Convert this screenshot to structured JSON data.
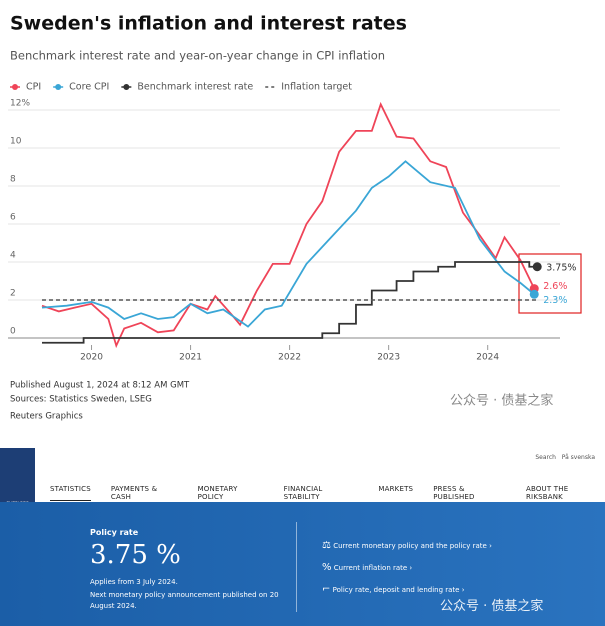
{
  "chart_data": {
    "type": "line",
    "title": "Sweden's inflation and interest rates",
    "subtitle": "Benchmark interest rate and year-on-year change in CPI inflation",
    "series": [
      {
        "name": "CPI",
        "color": "#ef4458",
        "x": [
          2019.5,
          2019.67,
          2019.83,
          2020.0,
          2020.17,
          2020.25,
          2020.33,
          2020.5,
          2020.67,
          2020.83,
          2021.0,
          2021.17,
          2021.25,
          2021.42,
          2021.5,
          2021.67,
          2021.83,
          2022.0,
          2022.17,
          2022.33,
          2022.5,
          2022.67,
          2022.83,
          2022.92,
          2023.08,
          2023.25,
          2023.42,
          2023.58,
          2023.75,
          2023.92,
          2024.08,
          2024.17,
          2024.33,
          2024.47
        ],
        "values": [
          1.7,
          1.4,
          1.6,
          1.8,
          1.0,
          -0.4,
          0.5,
          0.8,
          0.3,
          0.4,
          1.8,
          1.5,
          2.2,
          1.2,
          0.7,
          2.5,
          3.9,
          3.9,
          6.0,
          7.2,
          9.8,
          10.9,
          10.9,
          12.3,
          10.6,
          10.5,
          9.3,
          9.0,
          6.6,
          5.4,
          4.2,
          5.3,
          4.1,
          2.6
        ],
        "end_label": "2.6%"
      },
      {
        "name": "Core CPI",
        "color": "#3aa6d6",
        "x": [
          2019.5,
          2019.75,
          2020.0,
          2020.17,
          2020.33,
          2020.5,
          2020.67,
          2020.83,
          2021.0,
          2021.17,
          2021.33,
          2021.58,
          2021.75,
          2021.92,
          2022.17,
          2022.42,
          2022.67,
          2022.83,
          2023.0,
          2023.17,
          2023.42,
          2023.67,
          2023.92,
          2024.17,
          2024.33,
          2024.47
        ],
        "values": [
          1.6,
          1.7,
          1.9,
          1.6,
          1.0,
          1.3,
          1.0,
          1.1,
          1.8,
          1.3,
          1.5,
          0.6,
          1.5,
          1.7,
          3.9,
          5.3,
          6.7,
          7.9,
          8.5,
          9.3,
          8.2,
          7.9,
          5.2,
          3.5,
          2.9,
          2.3
        ],
        "end_label": "2.3%"
      },
      {
        "name": "Benchmark interest rate",
        "color": "#333333",
        "step": true,
        "x": [
          2019.5,
          2019.92,
          2022.33,
          2022.5,
          2022.67,
          2022.83,
          2023.08,
          2023.25,
          2023.5,
          2023.67,
          2024.42,
          2024.5
        ],
        "values": [
          -0.25,
          0,
          0.25,
          0.75,
          1.75,
          2.5,
          3.0,
          3.5,
          3.75,
          4.0,
          3.75,
          3.75
        ],
        "end_label": "3.75%"
      },
      {
        "name": "Inflation target",
        "color": "#555555",
        "dash": true,
        "x": [
          2019.5,
          2024.5
        ],
        "values": [
          2,
          2
        ]
      }
    ],
    "xlim": [
      2019.5,
      2024.73
    ],
    "xticks": [
      2020,
      2021,
      2022,
      2023,
      2024
    ],
    "ylim": [
      -0.8,
      12.5
    ],
    "yticks": [
      0,
      2,
      4,
      6,
      8,
      10,
      {
        "value": 12,
        "label": "12%"
      }
    ],
    "grid": true,
    "published": "Published August 1, 2024 at 8:12 AM GMT",
    "sources": "Sources: Statistics Sweden, LSEG",
    "credit": "Reuters Graphics"
  },
  "watermark": "公众号 · 债基之家",
  "website": {
    "logo": "SVERIGES RIKSBANK",
    "search": "Search",
    "language": "På svenska",
    "nav": [
      "STATISTICS",
      "PAYMENTS & CASH",
      "MONETARY POLICY",
      "FINANCIAL STABILITY",
      "MARKETS",
      "PRESS & PUBLISHED",
      "ABOUT THE RIKSBANK"
    ],
    "policy": {
      "heading": "Policy rate",
      "rate": "3.75 %",
      "applies": "Applies from 3 July 2024.",
      "next": "Next monetary policy announcement published on 20 August 2024."
    },
    "links": [
      "Current monetary policy and the policy rate",
      "Current inflation rate",
      "Policy rate, deposit and lending rate"
    ]
  }
}
